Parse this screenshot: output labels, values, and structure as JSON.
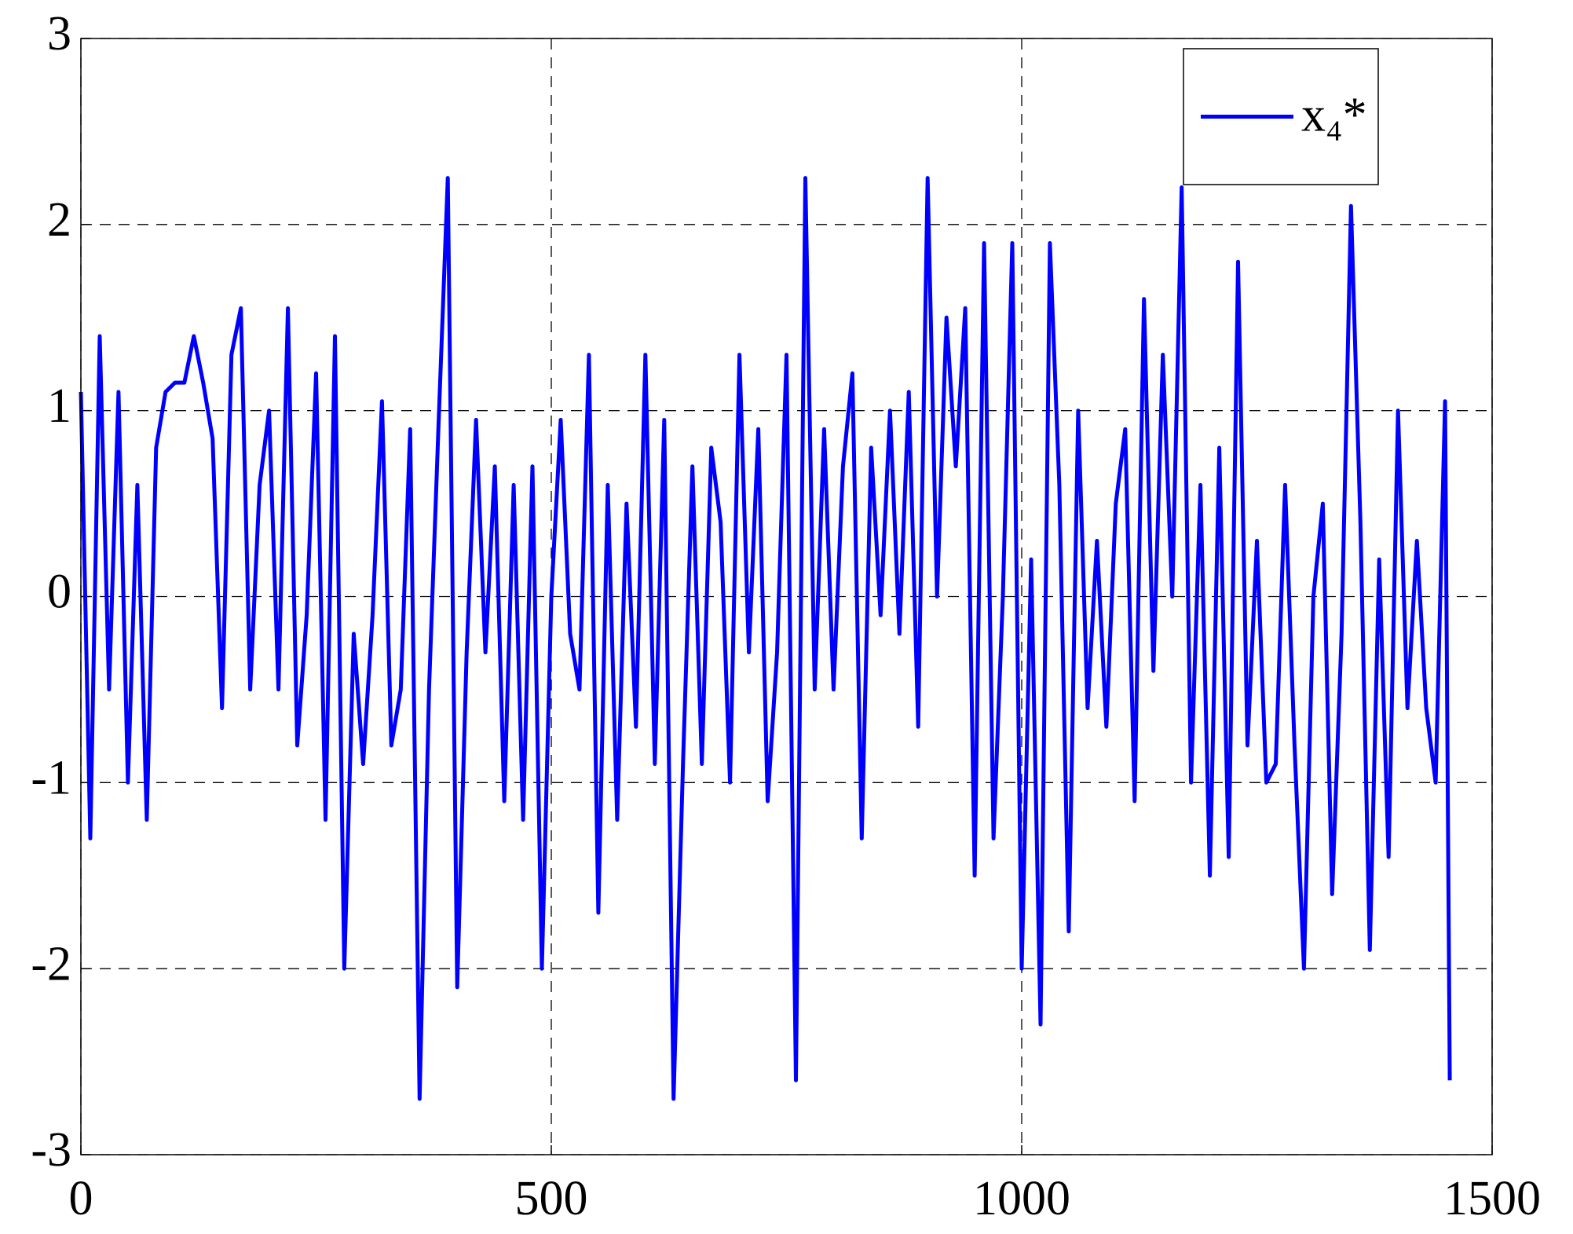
{
  "chart_data": {
    "type": "line",
    "x": [
      0,
      10,
      20,
      30,
      40,
      50,
      60,
      70,
      80,
      90,
      100,
      110,
      120,
      130,
      140,
      150,
      160,
      170,
      180,
      190,
      200,
      210,
      220,
      230,
      240,
      250,
      260,
      270,
      280,
      290,
      300,
      310,
      320,
      330,
      340,
      350,
      360,
      370,
      380,
      390,
      400,
      410,
      420,
      430,
      440,
      450,
      460,
      470,
      480,
      490,
      500,
      510,
      520,
      530,
      540,
      550,
      560,
      570,
      580,
      590,
      600,
      610,
      620,
      630,
      640,
      650,
      660,
      670,
      680,
      690,
      700,
      710,
      720,
      730,
      740,
      750,
      760,
      770,
      780,
      790,
      800,
      810,
      820,
      830,
      840,
      850,
      860,
      870,
      880,
      890,
      900,
      910,
      920,
      930,
      940,
      950,
      960,
      970,
      980,
      990,
      1000,
      1010,
      1020,
      1030,
      1040,
      1050,
      1060,
      1070,
      1080,
      1090,
      1100,
      1110,
      1120,
      1130,
      1140,
      1150,
      1160,
      1170,
      1180,
      1190,
      1200,
      1210,
      1220,
      1230,
      1240,
      1250,
      1260,
      1270,
      1280,
      1290,
      1300,
      1310,
      1320,
      1330,
      1340,
      1350,
      1360,
      1370,
      1380,
      1390,
      1400,
      1410,
      1420,
      1430,
      1440,
      1450,
      1455
    ],
    "series": [
      {
        "name": "x₄*",
        "color": "#0000ff",
        "values": [
          1.1,
          -1.3,
          1.4,
          -0.5,
          1.1,
          -1.0,
          0.6,
          -1.2,
          0.8,
          1.1,
          1.15,
          1.15,
          1.4,
          1.15,
          0.85,
          -0.6,
          1.3,
          1.55,
          -0.5,
          0.6,
          1.0,
          -0.5,
          1.55,
          -0.8,
          -0.1,
          1.2,
          -1.2,
          1.4,
          -2.0,
          -0.2,
          -0.9,
          -0.1,
          1.05,
          -0.8,
          -0.5,
          0.9,
          -2.7,
          -0.5,
          0.9,
          2.25,
          -2.1,
          -0.3,
          0.95,
          -0.3,
          0.7,
          -1.1,
          0.6,
          -1.2,
          0.7,
          -2.0,
          0.0,
          0.95,
          -0.2,
          -0.5,
          1.3,
          -1.7,
          0.6,
          -1.2,
          0.5,
          -0.7,
          1.3,
          -0.9,
          0.95,
          -2.7,
          -0.9,
          0.7,
          -0.9,
          0.8,
          0.4,
          -1.0,
          1.3,
          -0.3,
          0.9,
          -1.1,
          -0.3,
          1.3,
          -2.6,
          2.25,
          -0.5,
          0.9,
          -0.5,
          0.7,
          1.2,
          -1.3,
          0.8,
          -0.1,
          1.0,
          -0.2,
          1.1,
          -0.7,
          2.25,
          0.0,
          1.5,
          0.7,
          1.55,
          -1.5,
          1.9,
          -1.3,
          0.0,
          1.9,
          -2.0,
          0.2,
          -2.3,
          1.9,
          0.6,
          -1.8,
          1.0,
          -0.6,
          0.3,
          -0.7,
          0.5,
          0.9,
          -1.1,
          1.6,
          -0.4,
          1.3,
          0.0,
          2.2,
          -1.0,
          0.6,
          -1.5,
          0.8,
          -1.4,
          1.8,
          -0.8,
          0.3,
          -1.0,
          -0.9,
          0.6,
          -0.8,
          -2.0,
          0.0,
          0.5,
          -1.6,
          -0.2,
          2.1,
          0.4,
          -1.9,
          0.2,
          -1.4,
          1.0,
          -0.6,
          0.3,
          -0.6,
          -1.0,
          1.05,
          -2.6
        ]
      }
    ],
    "xlim": [
      0,
      1500
    ],
    "xticks": [
      0,
      500,
      1000,
      1500
    ],
    "ylim": [
      -3,
      3
    ],
    "yticks": [
      -3,
      -2,
      -1,
      0,
      1,
      2,
      3
    ],
    "grid": true,
    "legend": "upper right"
  }
}
